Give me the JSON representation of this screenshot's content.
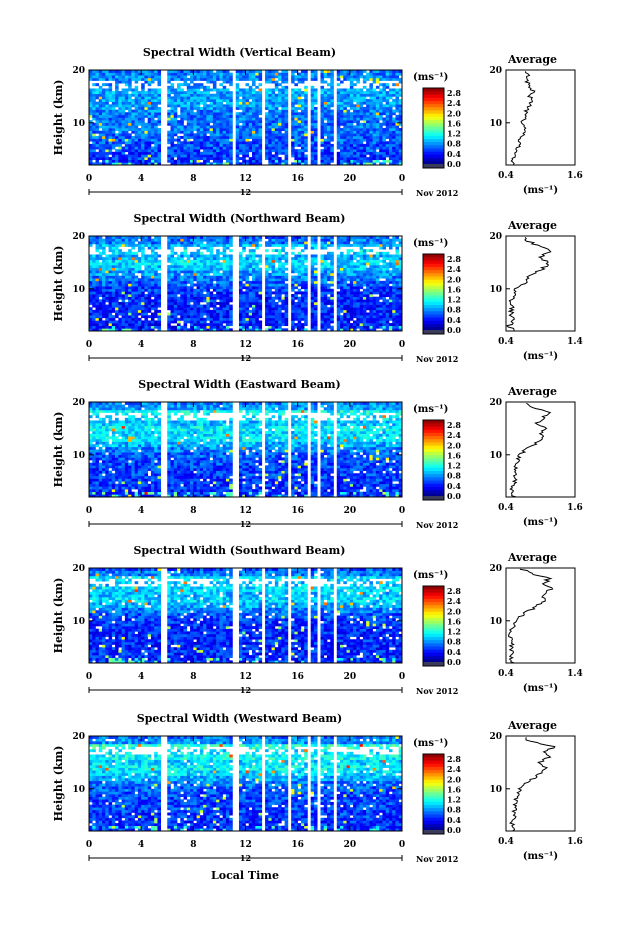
{
  "page": {
    "x_axis_label": "Local Time",
    "date_label": "Nov 2012",
    "day_marker": "12",
    "colorbar_unit": "(ms⁻¹)",
    "avg_unit": "(ms⁻¹)",
    "avg_title": "Average",
    "y_axis_label": "Height (km)"
  },
  "chart_data": [
    {
      "type": "heatmap",
      "title": "Spectral Width (Vertical Beam)",
      "xlabel": "Local Time",
      "ylabel": "Height (km)",
      "xticks": [
        "0",
        "4",
        "8",
        "12",
        "16",
        "20",
        "0"
      ],
      "xlim": [
        0,
        24
      ],
      "yticks": [
        "10",
        "20"
      ],
      "ylim": [
        2,
        20
      ],
      "colorbar_ticks": [
        "0.0",
        "0.4",
        "0.8",
        "1.2",
        "1.6",
        "2.0",
        "2.4",
        "2.8"
      ],
      "colorbar_range": [
        0.0,
        3.0
      ],
      "data_gaps_hours": [
        [
          5.6,
          5.9
        ],
        [
          11.0,
          11.3
        ],
        [
          13.3,
          13.5
        ],
        [
          15.2,
          15.5
        ],
        [
          16.7,
          16.9
        ],
        [
          17.5,
          17.7
        ],
        [
          18.8,
          19.0
        ],
        [
          21.4,
          21.6
        ]
      ],
      "average": {
        "title": "Average",
        "xticks": [
          "0.4",
          "1.6"
        ],
        "xlim": [
          0.4,
          1.6
        ],
        "yticks": [
          "10",
          "20"
        ],
        "heights_km": [
          2,
          3,
          4,
          5,
          6,
          7,
          8,
          9,
          10,
          11,
          12,
          13,
          14,
          15,
          16,
          17,
          18,
          19,
          20
        ],
        "values": [
          0.55,
          0.52,
          0.55,
          0.6,
          0.62,
          0.65,
          0.7,
          0.72,
          0.68,
          0.72,
          0.75,
          0.8,
          0.85,
          0.82,
          0.88,
          0.8,
          0.75,
          0.78,
          0.7
        ]
      }
    },
    {
      "type": "heatmap",
      "title": "Spectral Width (Northward Beam)",
      "xlabel": "Local Time",
      "ylabel": "Height (km)",
      "xticks": [
        "0",
        "4",
        "8",
        "12",
        "16",
        "20",
        "0"
      ],
      "xlim": [
        0,
        24
      ],
      "yticks": [
        "10",
        "20"
      ],
      "ylim": [
        2,
        20
      ],
      "colorbar_ticks": [
        "0.0",
        "0.4",
        "0.8",
        "1.2",
        "1.6",
        "2.0",
        "2.4",
        "2.8"
      ],
      "colorbar_range": [
        0.0,
        3.0
      ],
      "data_gaps_hours": [
        [
          5.6,
          5.9
        ],
        [
          11.0,
          11.4
        ],
        [
          13.3,
          13.5
        ],
        [
          15.2,
          15.5
        ],
        [
          16.7,
          16.9
        ],
        [
          17.5,
          17.7
        ],
        [
          18.8,
          19.0
        ],
        [
          21.4,
          21.6
        ]
      ],
      "average": {
        "title": "Average",
        "xticks": [
          "0.4",
          "1.4"
        ],
        "xlim": [
          0.4,
          1.4
        ],
        "yticks": [
          "10",
          "20"
        ],
        "heights_km": [
          2,
          3,
          4,
          5,
          6,
          7,
          8,
          9,
          10,
          11,
          12,
          13,
          14,
          15,
          16,
          17,
          18,
          19,
          20
        ],
        "values": [
          0.5,
          0.45,
          0.5,
          0.48,
          0.48,
          0.47,
          0.48,
          0.5,
          0.55,
          0.65,
          0.72,
          0.82,
          0.95,
          1.0,
          0.88,
          1.05,
          0.9,
          0.72,
          0.65
        ]
      }
    },
    {
      "type": "heatmap",
      "title": "Spectral Width (Eastward Beam)",
      "xlabel": "Local Time",
      "ylabel": "Height (km)",
      "xticks": [
        "0",
        "4",
        "8",
        "12",
        "16",
        "20",
        "0"
      ],
      "xlim": [
        0,
        24
      ],
      "yticks": [
        "10",
        "20"
      ],
      "ylim": [
        2,
        20
      ],
      "colorbar_ticks": [
        "0.0",
        "0.4",
        "0.8",
        "1.2",
        "1.6",
        "2.0",
        "2.4",
        "2.8"
      ],
      "colorbar_range": [
        0.0,
        3.0
      ],
      "data_gaps_hours": [
        [
          5.6,
          5.9
        ],
        [
          11.0,
          11.4
        ],
        [
          13.3,
          13.5
        ],
        [
          15.2,
          15.5
        ],
        [
          16.7,
          16.9
        ],
        [
          17.5,
          17.7
        ],
        [
          18.8,
          19.0
        ],
        [
          21.4,
          21.6
        ]
      ],
      "average": {
        "title": "Average",
        "xticks": [
          "0.4",
          "1.6"
        ],
        "xlim": [
          0.4,
          1.6
        ],
        "yticks": [
          "10",
          "20"
        ],
        "heights_km": [
          2,
          3,
          4,
          5,
          6,
          7,
          8,
          9,
          10,
          11,
          12,
          13,
          14,
          15,
          16,
          17,
          18,
          19,
          20
        ],
        "values": [
          0.55,
          0.5,
          0.52,
          0.55,
          0.55,
          0.55,
          0.58,
          0.6,
          0.65,
          0.75,
          0.9,
          1.05,
          1.0,
          1.1,
          0.95,
          1.05,
          1.15,
          0.85,
          0.75
        ]
      }
    },
    {
      "type": "heatmap",
      "title": "Spectral Width (Southward Beam)",
      "xlabel": "Local Time",
      "ylabel": "Height (km)",
      "xticks": [
        "0",
        "4",
        "8",
        "12",
        "16",
        "20",
        "0"
      ],
      "xlim": [
        0,
        24
      ],
      "yticks": [
        "10",
        "20"
      ],
      "ylim": [
        2,
        20
      ],
      "colorbar_ticks": [
        "0.0",
        "0.4",
        "0.8",
        "1.2",
        "1.6",
        "2.0",
        "2.4",
        "2.8"
      ],
      "colorbar_range": [
        0.0,
        3.0
      ],
      "data_gaps_hours": [
        [
          5.6,
          5.9
        ],
        [
          11.0,
          11.4
        ],
        [
          13.3,
          13.5
        ],
        [
          15.2,
          15.5
        ],
        [
          16.7,
          16.9
        ],
        [
          17.5,
          17.7
        ],
        [
          18.8,
          19.0
        ],
        [
          21.4,
          21.6
        ]
      ],
      "average": {
        "title": "Average",
        "xticks": [
          "0.4",
          "1.4"
        ],
        "xlim": [
          0.4,
          1.4
        ],
        "yticks": [
          "10",
          "20"
        ],
        "heights_km": [
          2,
          3,
          4,
          5,
          6,
          7,
          8,
          9,
          10,
          11,
          12,
          13,
          14,
          15,
          16,
          17,
          18,
          19,
          20
        ],
        "values": [
          0.52,
          0.48,
          0.5,
          0.48,
          0.48,
          0.47,
          0.48,
          0.5,
          0.55,
          0.62,
          0.75,
          0.88,
          1.0,
          0.92,
          1.05,
          0.95,
          1.02,
          0.75,
          0.6
        ]
      }
    },
    {
      "type": "heatmap",
      "title": "Spectral Width (Westward Beam)",
      "xlabel": "Local Time",
      "ylabel": "Height (km)",
      "xticks": [
        "0",
        "4",
        "8",
        "12",
        "16",
        "20",
        "0"
      ],
      "xlim": [
        0,
        24
      ],
      "yticks": [
        "10",
        "20"
      ],
      "ylim": [
        2,
        20
      ],
      "colorbar_ticks": [
        "0.0",
        "0.4",
        "0.8",
        "1.2",
        "1.6",
        "2.0",
        "2.4",
        "2.8"
      ],
      "colorbar_range": [
        0.0,
        3.0
      ],
      "data_gaps_hours": [
        [
          5.6,
          5.9
        ],
        [
          11.0,
          11.4
        ],
        [
          13.3,
          13.5
        ],
        [
          15.2,
          15.5
        ],
        [
          16.7,
          16.9
        ],
        [
          17.5,
          17.7
        ],
        [
          18.8,
          19.0
        ],
        [
          21.4,
          21.6
        ]
      ],
      "average": {
        "title": "Average",
        "xticks": [
          "0.4",
          "1.6"
        ],
        "xlim": [
          0.4,
          1.6
        ],
        "yticks": [
          "10",
          "20"
        ],
        "heights_km": [
          2,
          3,
          4,
          5,
          6,
          7,
          8,
          9,
          10,
          11,
          12,
          13,
          14,
          15,
          16,
          17,
          18,
          19,
          20
        ],
        "values": [
          0.55,
          0.5,
          0.52,
          0.55,
          0.55,
          0.56,
          0.58,
          0.6,
          0.65,
          0.72,
          0.88,
          1.02,
          1.1,
          1.0,
          1.15,
          1.05,
          1.25,
          0.8,
          0.7
        ]
      }
    }
  ]
}
